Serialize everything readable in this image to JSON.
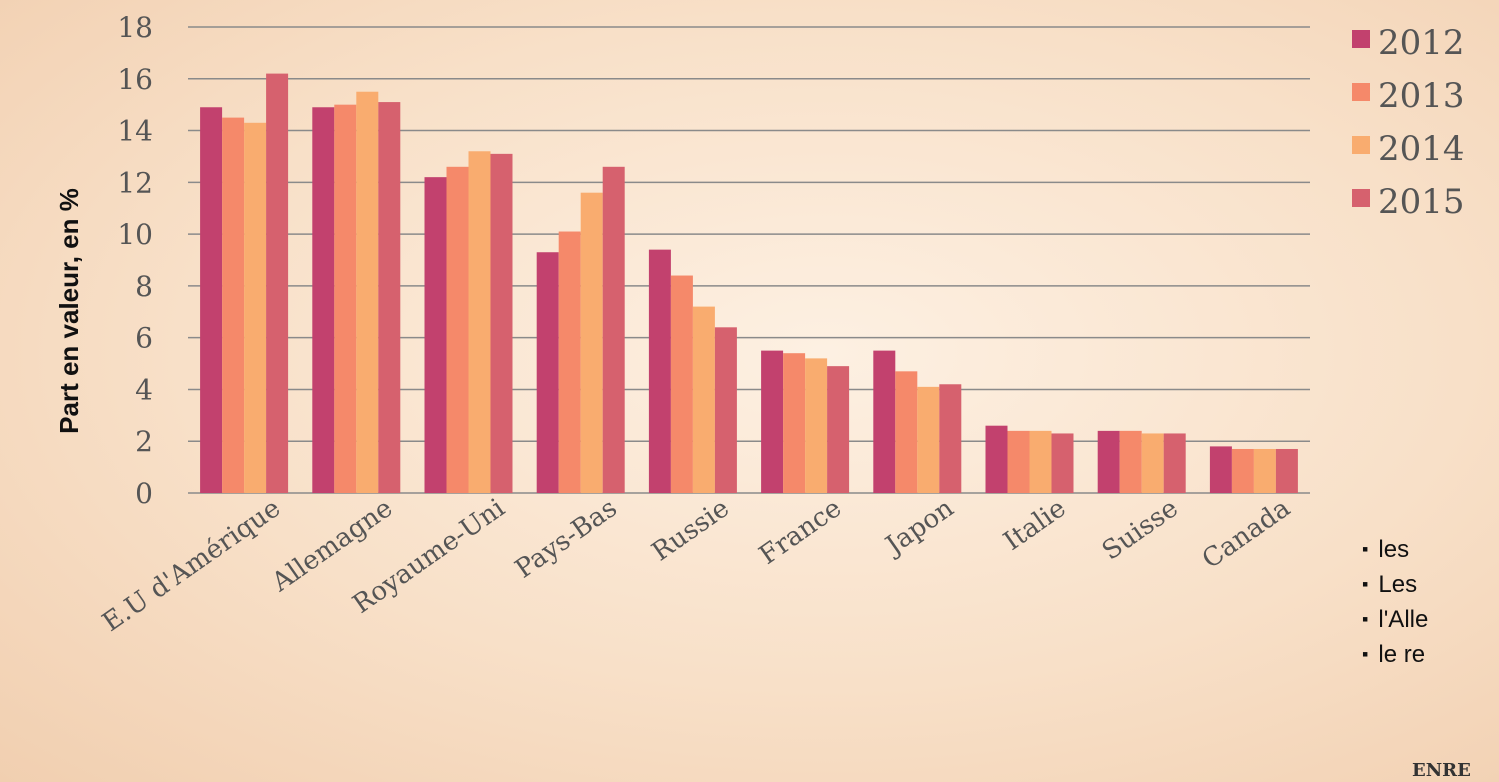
{
  "chart_data": {
    "type": "bar",
    "ylabel": "Part en valeur, en %",
    "ylim": [
      0,
      18
    ],
    "yticks": [
      0,
      2,
      4,
      6,
      8,
      10,
      12,
      14,
      16,
      18
    ],
    "grid": true,
    "legend_position": "right",
    "categories": [
      "E.U d'Amérique",
      "Allemagne",
      "Royaume-Uni",
      "Pays-Bas",
      "Russie",
      "France",
      "Japon",
      "Italie",
      "Suisse",
      "Canada"
    ],
    "series": [
      {
        "name": "2012",
        "color": "#c2416e",
        "values": [
          14.9,
          14.9,
          12.2,
          9.3,
          9.4,
          5.5,
          5.5,
          2.6,
          2.4,
          1.8
        ]
      },
      {
        "name": "2013",
        "color": "#f5896a",
        "values": [
          14.5,
          15.0,
          12.6,
          10.1,
          8.4,
          5.4,
          4.7,
          2.4,
          2.4,
          1.7
        ]
      },
      {
        "name": "2014",
        "color": "#f9ac6f",
        "values": [
          14.3,
          15.5,
          13.2,
          11.6,
          7.2,
          5.2,
          4.1,
          2.4,
          2.3,
          1.7
        ]
      },
      {
        "name": "2015",
        "color": "#d6616e",
        "values": [
          16.2,
          15.1,
          13.1,
          12.6,
          6.4,
          4.9,
          4.2,
          2.3,
          2.3,
          1.7
        ]
      }
    ]
  },
  "bullets": [
    "les",
    "Les",
    "l'Alle",
    "le re"
  ],
  "footer": "ENRE"
}
